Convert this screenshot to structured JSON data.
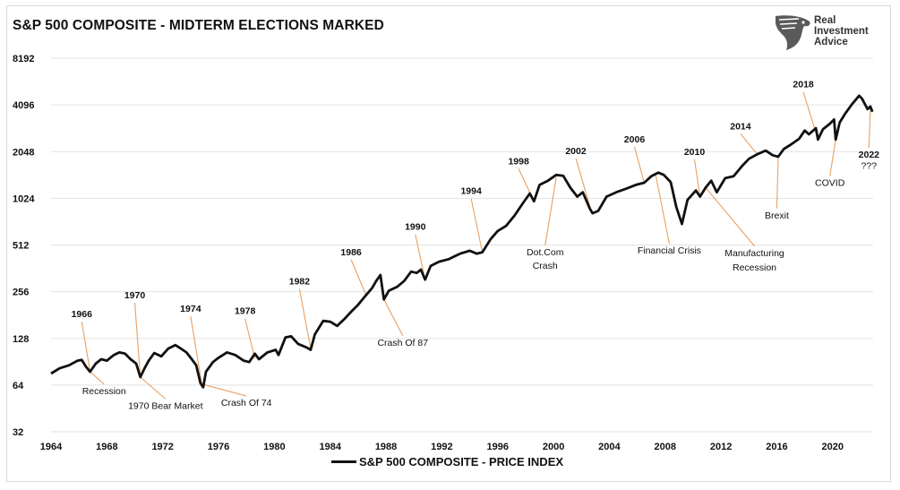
{
  "header": {
    "title": "S&P 500 COMPOSITE - MIDTERM ELECTIONS MARKED"
  },
  "brand": {
    "line1": "Real",
    "line2": "Investment",
    "line3": "Advice",
    "icon": "eagle-head-icon"
  },
  "colors": {
    "line": "#111111",
    "annotation_leader": "#e8a062",
    "grid": "#e2e2e2",
    "frame": "#d9d9d9"
  },
  "chart_data": {
    "type": "line",
    "title": "S&P 500 COMPOSITE - MIDTERM ELECTIONS MARKED",
    "xlabel": "",
    "ylabel": "",
    "y_scale": "log2",
    "xlim": [
      1964,
      2022.9
    ],
    "ylim": [
      32,
      8192
    ],
    "x_ticks": [
      1964,
      1968,
      1972,
      1976,
      1980,
      1984,
      1988,
      1992,
      1996,
      2000,
      2004,
      2008,
      2012,
      2016,
      2020
    ],
    "y_ticks": [
      32,
      64,
      128,
      256,
      512,
      1024,
      2048,
      4096,
      8192
    ],
    "grid": true,
    "legend_position": "bottom-center",
    "series": [
      {
        "name": "S&P 500 COMPOSITE - PRICE INDEX",
        "points": [
          [
            1964.0,
            76
          ],
          [
            1964.6,
            82
          ],
          [
            1965.3,
            86
          ],
          [
            1965.9,
            92
          ],
          [
            1966.2,
            93
          ],
          [
            1966.5,
            84
          ],
          [
            1966.8,
            78
          ],
          [
            1967.2,
            88
          ],
          [
            1967.6,
            94
          ],
          [
            1968.0,
            92
          ],
          [
            1968.5,
            100
          ],
          [
            1968.9,
            104
          ],
          [
            1969.3,
            102
          ],
          [
            1969.7,
            94
          ],
          [
            1970.1,
            88
          ],
          [
            1970.4,
            72
          ],
          [
            1970.7,
            82
          ],
          [
            1971.0,
            92
          ],
          [
            1971.4,
            103
          ],
          [
            1971.9,
            98
          ],
          [
            1972.4,
            110
          ],
          [
            1972.9,
            116
          ],
          [
            1973.3,
            110
          ],
          [
            1973.7,
            104
          ],
          [
            1974.0,
            96
          ],
          [
            1974.4,
            86
          ],
          [
            1974.7,
            66
          ],
          [
            1974.9,
            62
          ],
          [
            1975.1,
            78
          ],
          [
            1975.6,
            90
          ],
          [
            1976.0,
            96
          ],
          [
            1976.6,
            104
          ],
          [
            1977.2,
            100
          ],
          [
            1977.8,
            92
          ],
          [
            1978.2,
            90
          ],
          [
            1978.6,
            102
          ],
          [
            1978.9,
            94
          ],
          [
            1979.5,
            104
          ],
          [
            1980.1,
            108
          ],
          [
            1980.3,
            100
          ],
          [
            1980.8,
            130
          ],
          [
            1981.2,
            132
          ],
          [
            1981.7,
            118
          ],
          [
            1982.3,
            112
          ],
          [
            1982.6,
            108
          ],
          [
            1982.9,
            136
          ],
          [
            1983.5,
            166
          ],
          [
            1984.0,
            164
          ],
          [
            1984.5,
            154
          ],
          [
            1985.0,
            170
          ],
          [
            1985.5,
            190
          ],
          [
            1986.0,
            211
          ],
          [
            1986.6,
            245
          ],
          [
            1987.0,
            270
          ],
          [
            1987.3,
            300
          ],
          [
            1987.6,
            328
          ],
          [
            1987.85,
            228
          ],
          [
            1988.2,
            260
          ],
          [
            1988.8,
            275
          ],
          [
            1989.3,
            300
          ],
          [
            1989.8,
            345
          ],
          [
            1990.2,
            338
          ],
          [
            1990.5,
            355
          ],
          [
            1990.8,
            306
          ],
          [
            1991.2,
            375
          ],
          [
            1991.8,
            400
          ],
          [
            1992.5,
            415
          ],
          [
            1993.3,
            450
          ],
          [
            1994.0,
            470
          ],
          [
            1994.5,
            450
          ],
          [
            1994.9,
            460
          ],
          [
            1995.5,
            560
          ],
          [
            1996.0,
            630
          ],
          [
            1996.6,
            680
          ],
          [
            1997.2,
            790
          ],
          [
            1997.8,
            950
          ],
          [
            1998.3,
            1100
          ],
          [
            1998.6,
            980
          ],
          [
            1999.0,
            1250
          ],
          [
            1999.6,
            1330
          ],
          [
            2000.2,
            1450
          ],
          [
            2000.7,
            1430
          ],
          [
            2001.2,
            1200
          ],
          [
            2001.7,
            1050
          ],
          [
            2002.1,
            1120
          ],
          [
            2002.6,
            880
          ],
          [
            2002.8,
            820
          ],
          [
            2003.2,
            850
          ],
          [
            2003.8,
            1050
          ],
          [
            2004.5,
            1120
          ],
          [
            2005.2,
            1180
          ],
          [
            2005.9,
            1250
          ],
          [
            2006.5,
            1290
          ],
          [
            2007.0,
            1420
          ],
          [
            2007.5,
            1500
          ],
          [
            2007.9,
            1450
          ],
          [
            2008.4,
            1300
          ],
          [
            2008.8,
            900
          ],
          [
            2009.2,
            700
          ],
          [
            2009.6,
            1000
          ],
          [
            2010.2,
            1150
          ],
          [
            2010.5,
            1050
          ],
          [
            2010.9,
            1200
          ],
          [
            2011.3,
            1330
          ],
          [
            2011.7,
            1120
          ],
          [
            2012.3,
            1380
          ],
          [
            2012.9,
            1420
          ],
          [
            2013.5,
            1650
          ],
          [
            2014.0,
            1840
          ],
          [
            2014.6,
            1970
          ],
          [
            2015.2,
            2080
          ],
          [
            2015.7,
            1940
          ],
          [
            2016.1,
            1900
          ],
          [
            2016.5,
            2130
          ],
          [
            2017.0,
            2270
          ],
          [
            2017.6,
            2480
          ],
          [
            2018.0,
            2800
          ],
          [
            2018.3,
            2650
          ],
          [
            2018.8,
            2900
          ],
          [
            2018.95,
            2450
          ],
          [
            2019.3,
            2850
          ],
          [
            2019.8,
            3100
          ],
          [
            2020.1,
            3300
          ],
          [
            2020.22,
            2450
          ],
          [
            2020.5,
            3150
          ],
          [
            2020.9,
            3600
          ],
          [
            2021.4,
            4150
          ],
          [
            2021.9,
            4700
          ],
          [
            2022.1,
            4500
          ],
          [
            2022.5,
            3850
          ],
          [
            2022.7,
            4000
          ],
          [
            2022.85,
            3700
          ]
        ]
      }
    ],
    "annotations": [
      {
        "text": "1966",
        "x": 1966.8,
        "y": 78,
        "label_pos": [
          1966.2,
          175
        ]
      },
      {
        "text": "Recession",
        "x": 1966.8,
        "y": 78,
        "label_pos": [
          1967.8,
          56
        ]
      },
      {
        "text": "1970",
        "x": 1970.4,
        "y": 72,
        "label_pos": [
          1970.0,
          232
        ]
      },
      {
        "text": "1970 Bear Market",
        "x": 1970.4,
        "y": 72,
        "label_pos": [
          1972.2,
          45
        ]
      },
      {
        "text": "1974",
        "x": 1974.8,
        "y": 65,
        "label_pos": [
          1974.0,
          190
        ]
      },
      {
        "text": "Crash Of 74",
        "x": 1974.8,
        "y": 65,
        "label_pos": [
          1978.0,
          47
        ]
      },
      {
        "text": "1978",
        "x": 1978.6,
        "y": 95,
        "label_pos": [
          1977.9,
          184
        ]
      },
      {
        "text": "1982",
        "x": 1982.6,
        "y": 110,
        "label_pos": [
          1981.8,
          285
        ]
      },
      {
        "text": "1986",
        "x": 1986.6,
        "y": 240,
        "label_pos": [
          1985.5,
          440
        ]
      },
      {
        "text": "Crash Of 87",
        "x": 1987.85,
        "y": 228,
        "label_pos": [
          1989.2,
          115
        ]
      },
      {
        "text": "1990",
        "x": 1990.8,
        "y": 306,
        "label_pos": [
          1990.1,
          640
        ]
      },
      {
        "text": "1994",
        "x": 1994.9,
        "y": 460,
        "label_pos": [
          1994.1,
          1090
        ]
      },
      {
        "text": "1998",
        "x": 1998.6,
        "y": 980,
        "label_pos": [
          1997.5,
          1700
        ]
      },
      {
        "text": "Dot.Com",
        "x": 2000.2,
        "y": 1400,
        "label_pos": [
          1999.4,
          440
        ]
      },
      {
        "text": "Crash",
        "x": 2000.2,
        "y": 1400,
        "label_pos": [
          1999.4,
          360
        ]
      },
      {
        "text": "2002",
        "x": 2002.7,
        "y": 850,
        "label_pos": [
          2001.6,
          1980
        ]
      },
      {
        "text": "2006",
        "x": 2006.5,
        "y": 1290,
        "label_pos": [
          2005.8,
          2350
        ]
      },
      {
        "text": "Financial Crisis",
        "x": 2007.3,
        "y": 1480,
        "label_pos": [
          2008.3,
          450
        ]
      },
      {
        "text": "2010",
        "x": 2010.5,
        "y": 1050,
        "label_pos": [
          2010.1,
          1950
        ]
      },
      {
        "text": "Manufacturing",
        "x": 2010.9,
        "y": 1200,
        "label_pos": [
          2014.4,
          435
        ]
      },
      {
        "text": "Recession",
        "x": 2010.9,
        "y": 1200,
        "label_pos": [
          2014.4,
          350
        ]
      },
      {
        "text": "2014",
        "x": 2014.6,
        "y": 1970,
        "label_pos": [
          2013.4,
          2850
        ]
      },
      {
        "text": "Brexit",
        "x": 2016.1,
        "y": 1900,
        "label_pos": [
          2016.0,
          760
        ]
      },
      {
        "text": "2018",
        "x": 2018.95,
        "y": 2450,
        "label_pos": [
          2017.9,
          5300
        ]
      },
      {
        "text": "COVID",
        "x": 2020.22,
        "y": 2450,
        "label_pos": [
          2019.8,
          1230
        ]
      },
      {
        "text": "2022",
        "x": 2022.7,
        "y": 3900,
        "label_pos": [
          2022.6,
          1870
        ]
      },
      {
        "text": "???",
        "x": 2022.7,
        "y": 3900,
        "label_pos": [
          2022.6,
          1590
        ]
      }
    ]
  }
}
